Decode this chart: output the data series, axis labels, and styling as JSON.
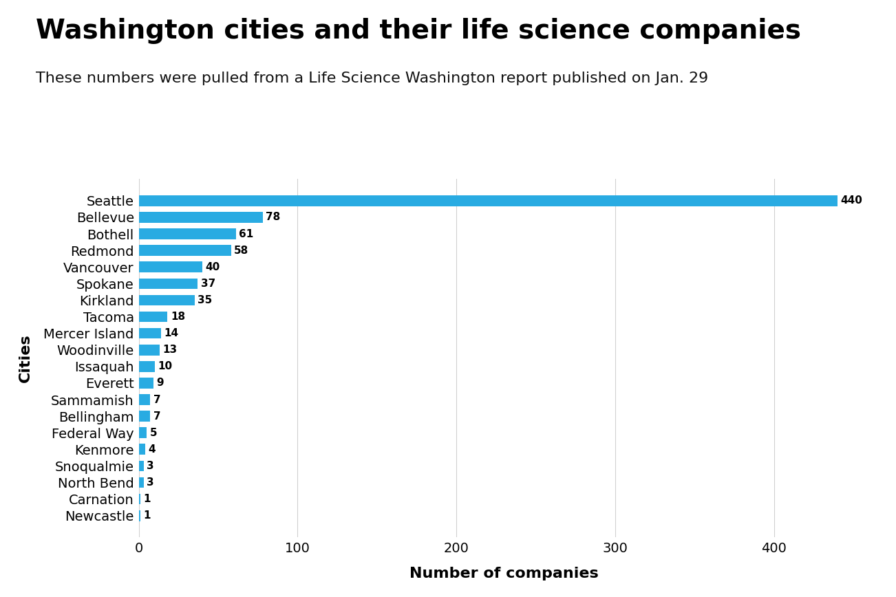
{
  "title": "Washington cities and their life science companies",
  "subtitle": "These numbers were pulled from a Life Science Washington report published on Jan. 29",
  "ylabel": "Cities",
  "xlabel": "Number of companies",
  "bar_color": "#29ABE2",
  "background_color": "#ffffff",
  "categories": [
    "Seattle",
    "Bellevue",
    "Bothell",
    "Redmond",
    "Vancouver",
    "Spokane",
    "Kirkland",
    "Tacoma",
    "Mercer Island",
    "Woodinville",
    "Issaquah",
    "Everett",
    "Sammamish",
    "Bellingham",
    "Federal Way",
    "Kenmore",
    "Snoqualmie",
    "North Bend",
    "Carnation",
    "Newcastle"
  ],
  "values": [
    440,
    78,
    61,
    58,
    40,
    37,
    35,
    18,
    14,
    13,
    10,
    9,
    7,
    7,
    5,
    4,
    3,
    3,
    1,
    1
  ],
  "xlim": [
    0,
    460
  ],
  "xticks": [
    0,
    100,
    200,
    300,
    400
  ],
  "title_fontsize": 28,
  "subtitle_fontsize": 16,
  "label_fontsize": 14,
  "axis_label_fontsize": 16,
  "tick_fontsize": 14,
  "value_fontsize": 11
}
